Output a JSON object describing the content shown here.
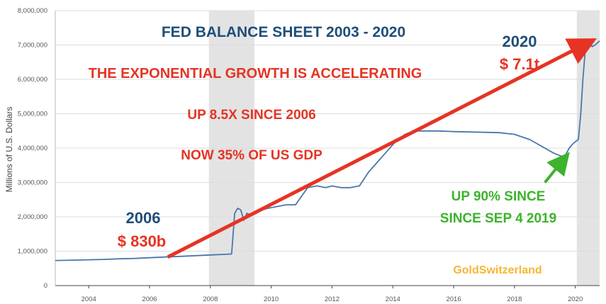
{
  "chart_data": {
    "type": "line",
    "title": "FED BALANCE SHEET 2003 - 2020",
    "ylabel": "Millions of U.S. Dollars",
    "xlabel": "",
    "xlim": [
      2002.9,
      2020.8
    ],
    "ylim": [
      0,
      8000000
    ],
    "x_ticks": [
      2004,
      2006,
      2008,
      2010,
      2012,
      2014,
      2016,
      2018,
      2020
    ],
    "x_tick_labels": [
      "2004",
      "2006",
      "2008",
      "2010",
      "2012",
      "2014",
      "2016",
      "2018",
      "2020"
    ],
    "y_ticks": [
      0,
      1000000,
      2000000,
      3000000,
      4000000,
      5000000,
      6000000,
      7000000,
      8000000
    ],
    "y_tick_labels": [
      "0",
      "1,000,000",
      "2,000,000",
      "3,000,000",
      "4,000,000",
      "5,000,000",
      "6,000,000",
      "7,000,000",
      "8,000,000"
    ],
    "grid": true,
    "recession_bands": [
      [
        2007.95,
        2009.45
      ],
      [
        2020.05,
        2020.8
      ]
    ],
    "series": [
      {
        "name": "",
        "color": "#4a77aa",
        "x": [
          2002.9,
          2003.5,
          2004.0,
          2004.5,
          2005.0,
          2005.5,
          2006.0,
          2006.5,
          2007.0,
          2007.5,
          2008.0,
          2008.5,
          2008.7,
          2008.8,
          2008.9,
          2009.0,
          2009.1,
          2009.2,
          2009.35,
          2009.5,
          2009.7,
          2009.9,
          2010.2,
          2010.5,
          2010.8,
          2011.0,
          2011.2,
          2011.5,
          2011.8,
          2012.0,
          2012.3,
          2012.6,
          2012.9,
          2013.2,
          2013.5,
          2013.8,
          2014.1,
          2014.4,
          2014.7,
          2015.0,
          2015.5,
          2016.0,
          2016.5,
          2017.0,
          2017.5,
          2018.0,
          2018.5,
          2019.0,
          2019.3,
          2019.55,
          2019.68,
          2019.8,
          2019.95,
          2020.1,
          2020.18,
          2020.25,
          2020.35,
          2020.45,
          2020.55,
          2020.65,
          2020.8
        ],
        "values": [
          730000,
          740000,
          750000,
          760000,
          780000,
          790000,
          810000,
          830000,
          850000,
          870000,
          890000,
          910000,
          920000,
          2100000,
          2250000,
          2200000,
          1900000,
          2100000,
          2050000,
          2100000,
          2200000,
          2250000,
          2300000,
          2350000,
          2350000,
          2600000,
          2850000,
          2900000,
          2850000,
          2900000,
          2850000,
          2850000,
          2900000,
          3300000,
          3600000,
          3900000,
          4200000,
          4400000,
          4500000,
          4500000,
          4500000,
          4480000,
          4470000,
          4460000,
          4450000,
          4400000,
          4250000,
          4000000,
          3850000,
          3760000,
          3800000,
          4000000,
          4150000,
          4250000,
          5000000,
          6000000,
          7100000,
          7150000,
          6950000,
          7000000,
          7120000
        ]
      }
    ],
    "annotations": [
      {
        "text": "THE EXPONENTIAL GROWTH IS ACCELERATING",
        "color": "#e63324"
      },
      {
        "text": "UP 8.5X SINCE 2006",
        "color": "#e63324"
      },
      {
        "text": "NOW 35% OF US  GDP",
        "color": "#e63324"
      },
      {
        "text": "2006",
        "color": "#1f4e79"
      },
      {
        "text": "$ 830b",
        "color": "#e63324"
      },
      {
        "text": "2020",
        "color": "#1f4e79"
      },
      {
        "text": "$ 7.1t",
        "color": "#e63324"
      },
      {
        "text": "UP 90% SINCE",
        "color": "#3cb32b"
      },
      {
        "text": "SINCE SEP 4 2019",
        "color": "#3cb32b"
      },
      {
        "text": "GoldSwitzerland",
        "color": "#f5b731"
      }
    ],
    "trend_arrow": {
      "from": [
        2006.6,
        830000
      ],
      "to": [
        2020.5,
        7100000
      ],
      "color": "#e63324"
    },
    "callout_arrow": {
      "from": [
        2019.0,
        3000000
      ],
      "to": [
        2019.7,
        3760000
      ],
      "color": "#3cb32b"
    }
  }
}
